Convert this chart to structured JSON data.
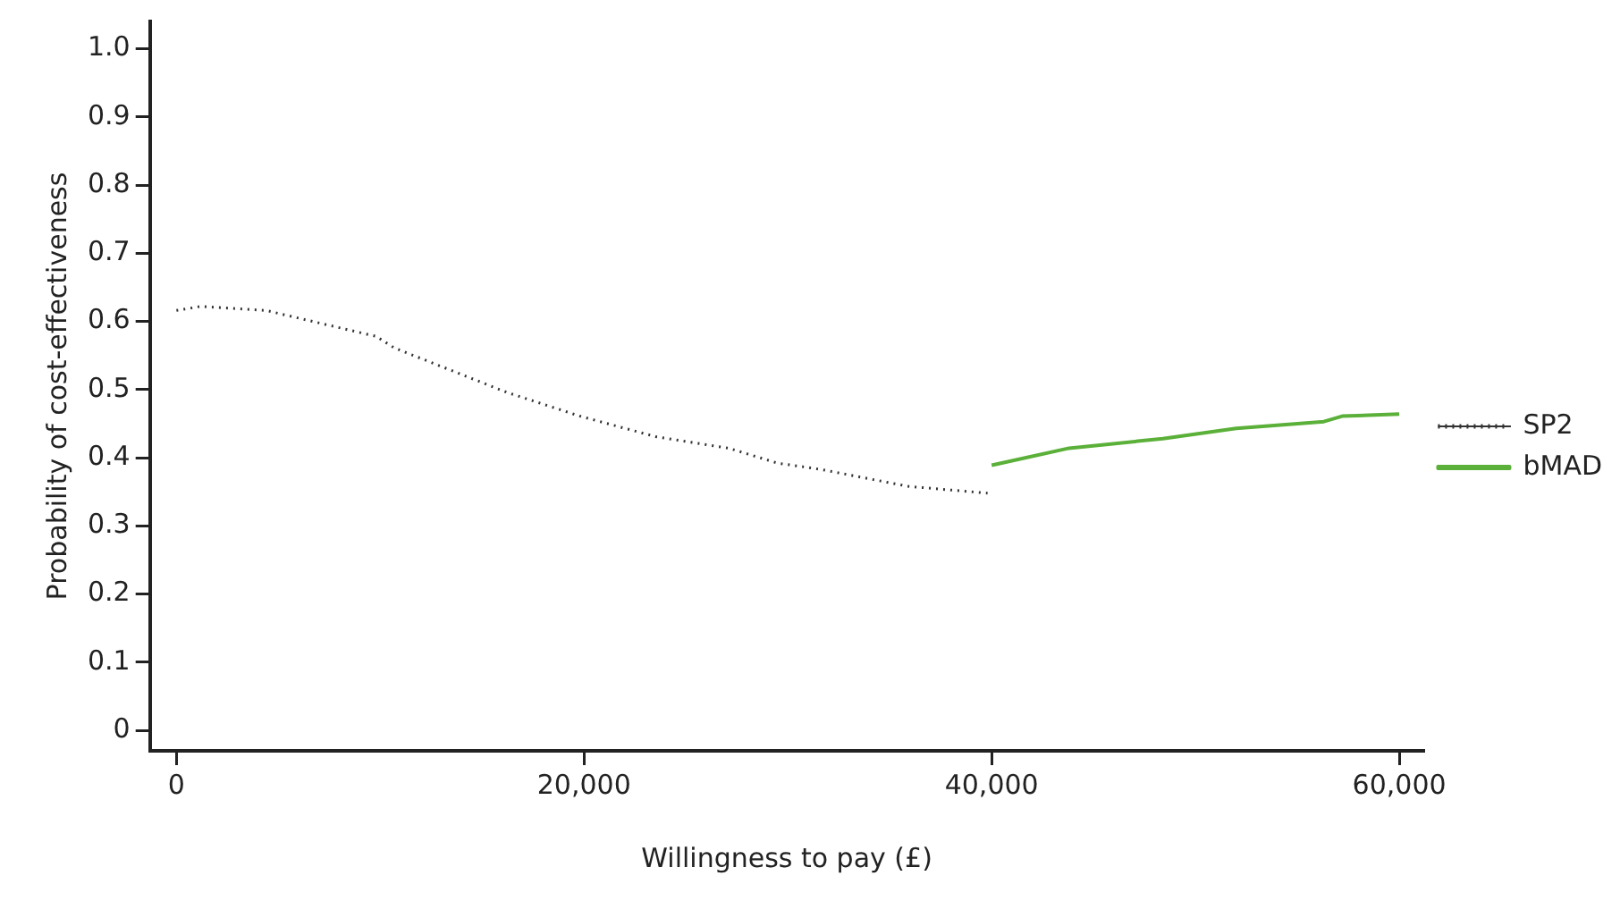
{
  "chart_data": {
    "type": "line",
    "xlabel": "Willingness to pay (£)",
    "ylabel": "Probability of cost-effectiveness",
    "xlim": [
      -1300,
      61200
    ],
    "ylim": [
      -0.03,
      1.04
    ],
    "xticks": [
      0,
      {
        "value": 20000,
        "label": "20,000"
      },
      {
        "value": 40000,
        "label": "40,000"
      },
      {
        "value": 60000,
        "label": "60,000"
      }
    ],
    "yticks": [
      0,
      0.1,
      0.2,
      0.3,
      0.4,
      0.5,
      0.6,
      0.7,
      0.8,
      0.9,
      {
        "value": 1.0,
        "label": "1.0"
      }
    ],
    "grid": false,
    "legend": "right",
    "marker": "none",
    "series": [
      {
        "name": "SP2",
        "color": "#333333",
        "line_style": "dotted",
        "x": [
          0,
          1200,
          4400,
          9800,
          10700,
          16200,
          19800,
          23500,
          27100,
          29500,
          31600,
          35900,
          39800
        ],
        "values": [
          0.616,
          0.622,
          0.616,
          0.578,
          0.561,
          0.496,
          0.461,
          0.431,
          0.414,
          0.392,
          0.383,
          0.358,
          0.348
        ]
      },
      {
        "name": "bMAD",
        "color": "#5ab038",
        "line_style": "solid",
        "x": [
          40000,
          43800,
          48400,
          52000,
          56300,
          57200,
          60000
        ],
        "values": [
          0.389,
          0.414,
          0.428,
          0.443,
          0.453,
          0.461,
          0.464
        ]
      }
    ]
  }
}
